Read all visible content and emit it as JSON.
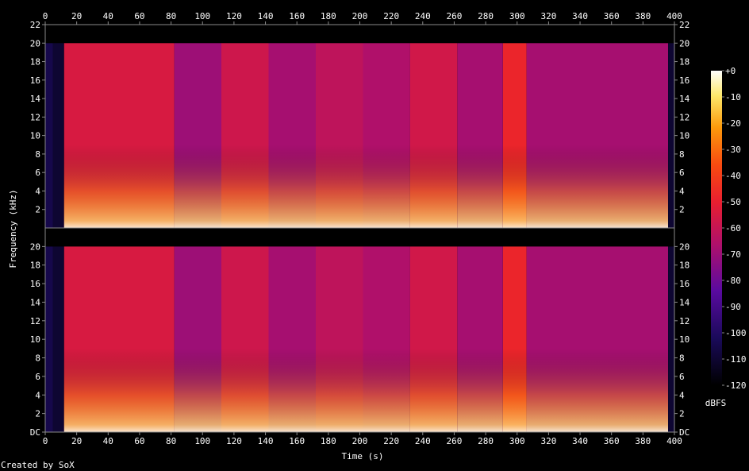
{
  "chart_data": {
    "type": "heatmap",
    "title": "",
    "xlabel": "Time (s)",
    "ylabel": "Frequency (kHz)",
    "xlim": [
      0,
      400
    ],
    "ylim": [
      0,
      22
    ],
    "x_ticks": [
      "0",
      "20",
      "40",
      "60",
      "80",
      "100",
      "120",
      "140",
      "160",
      "180",
      "200",
      "220",
      "240",
      "260",
      "280",
      "300",
      "320",
      "340",
      "360",
      "380",
      "400"
    ],
    "y_ticks_top": [
      "22",
      "20",
      "18",
      "16",
      "14",
      "12",
      "10",
      "8",
      "6",
      "4",
      "2"
    ],
    "y_ticks_bottom": [
      "20",
      "18",
      "16",
      "14",
      "12",
      "10",
      "8",
      "6",
      "4",
      "2",
      "DC"
    ],
    "channels": 2,
    "colorbar": {
      "unit": "dBFS",
      "ticks": [
        "+0",
        "-10",
        "-20",
        "-30",
        "-40",
        "-50",
        "-60",
        "-70",
        "-80",
        "-90",
        "-100",
        "-110",
        "-120"
      ],
      "range": [
        -120,
        0
      ]
    },
    "segments_s": [
      {
        "start": 0,
        "end": 5,
        "level_db": -105
      },
      {
        "start": 5,
        "end": 12,
        "level_db": -110
      },
      {
        "start": 12,
        "end": 82,
        "level_db": -55
      },
      {
        "start": 82,
        "end": 112,
        "level_db": -70
      },
      {
        "start": 112,
        "end": 142,
        "level_db": -58
      },
      {
        "start": 142,
        "end": 172,
        "level_db": -68
      },
      {
        "start": 172,
        "end": 202,
        "level_db": -62
      },
      {
        "start": 202,
        "end": 232,
        "level_db": -66
      },
      {
        "start": 232,
        "end": 262,
        "level_db": -57
      },
      {
        "start": 262,
        "end": 291,
        "level_db": -68
      },
      {
        "start": 291,
        "end": 306,
        "level_db": -48
      },
      {
        "start": 306,
        "end": 396,
        "level_db": -68
      },
      {
        "start": 396,
        "end": 400,
        "level_db": -110
      }
    ],
    "bandwidth_khz": 20
  },
  "footer": {
    "credit": "Created by SoX"
  },
  "colors": {
    "background": "#000000",
    "axis": "#8a8a8a",
    "text": "#ffffff"
  }
}
